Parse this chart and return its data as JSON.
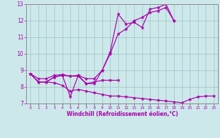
{
  "x_values": [
    0,
    1,
    2,
    3,
    4,
    5,
    6,
    7,
    8,
    9,
    10,
    11,
    12,
    13,
    14,
    15,
    16,
    17,
    18,
    19,
    20,
    21,
    22,
    23
  ],
  "line1": [
    8.8,
    8.3,
    8.3,
    8.6,
    8.7,
    7.4,
    8.7,
    8.2,
    8.2,
    9.0,
    10.1,
    12.4,
    11.8,
    11.9,
    11.6,
    12.7,
    12.8,
    13.0,
    12.0,
    null,
    null,
    null,
    null,
    null
  ],
  "line2": [
    8.8,
    8.3,
    8.3,
    8.6,
    8.7,
    8.65,
    8.65,
    8.2,
    8.3,
    8.4,
    8.4,
    8.4,
    null,
    null,
    null,
    null,
    null,
    null,
    null,
    null,
    null,
    null,
    null,
    null
  ],
  "line3": [
    8.8,
    8.3,
    8.3,
    8.25,
    8.1,
    7.75,
    7.85,
    7.75,
    7.65,
    7.55,
    7.45,
    7.45,
    7.4,
    7.35,
    7.3,
    7.25,
    7.2,
    7.15,
    7.1,
    7.05,
    7.25,
    7.4,
    7.45,
    7.45
  ],
  "line4": [
    8.8,
    8.5,
    8.5,
    8.7,
    8.75,
    8.65,
    8.7,
    8.5,
    8.5,
    9.0,
    10.0,
    11.2,
    11.5,
    12.0,
    12.2,
    12.5,
    12.6,
    12.8,
    12.0,
    null,
    null,
    null,
    null,
    null
  ],
  "xlabel": "Windchill (Refroidissement éolien,°C)",
  "ylim": [
    7,
    13
  ],
  "xlim": [
    -0.5,
    23.5
  ],
  "yticks": [
    7,
    8,
    9,
    10,
    11,
    12,
    13
  ],
  "xticks": [
    0,
    1,
    2,
    3,
    4,
    5,
    6,
    7,
    8,
    9,
    10,
    11,
    12,
    13,
    14,
    15,
    16,
    17,
    18,
    19,
    20,
    21,
    22,
    23
  ],
  "line_color": "#aa00aa",
  "bg_color": "#cde8ea",
  "grid_color": "#9bbfc2",
  "spine_color": "#888888"
}
